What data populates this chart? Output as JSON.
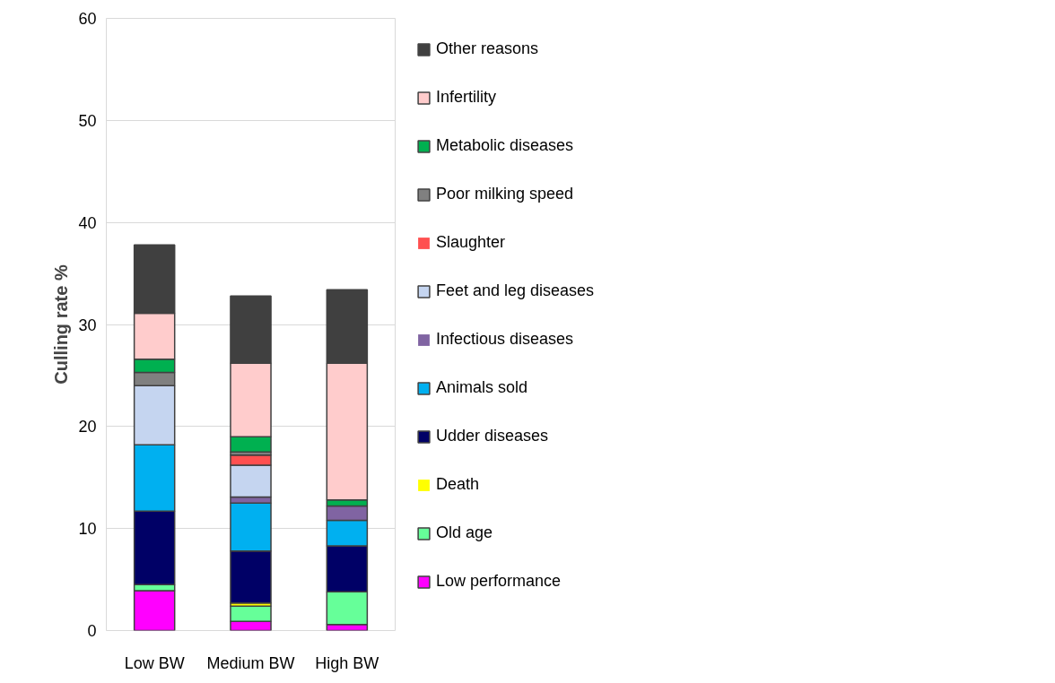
{
  "chart_data": {
    "type": "bar",
    "stacked": true,
    "ylabel": "Culling rate %",
    "categories": [
      "Low BW",
      "Medium BW",
      "High BW"
    ],
    "series": [
      {
        "name": "Low performance",
        "color": "#ff00ff",
        "values": [
          3.9,
          0.9,
          0.6
        ]
      },
      {
        "name": "Old age",
        "color": "#66ff99",
        "values": [
          0.6,
          1.5,
          3.2
        ]
      },
      {
        "name": "Death",
        "color": "#ffff00",
        "values": [
          0,
          0.3,
          0
        ]
      },
      {
        "name": "Udder diseases",
        "color": "#000066",
        "values": [
          7.2,
          5.1,
          4.5
        ]
      },
      {
        "name": "Animals sold",
        "color": "#00b0f0",
        "values": [
          6.5,
          4.7,
          2.5
        ]
      },
      {
        "name": "Infectious diseases",
        "color": "#8064a2",
        "values": [
          0,
          0.6,
          1.4
        ]
      },
      {
        "name": "Feet and leg diseases",
        "color": "#c5d5f0",
        "values": [
          5.8,
          3.1,
          0
        ]
      },
      {
        "name": "Slaughter",
        "color": "#ff5050",
        "values": [
          0,
          1.0,
          0
        ]
      },
      {
        "name": "Poor milking speed",
        "color": "#808080",
        "values": [
          1.3,
          0.3,
          0
        ]
      },
      {
        "name": "Metabolic diseases",
        "color": "#00b050",
        "values": [
          1.3,
          1.5,
          0.6
        ]
      },
      {
        "name": "Infertility",
        "color": "#ffcccc",
        "values": [
          4.5,
          7.2,
          13.4
        ]
      },
      {
        "name": "Other reasons",
        "color": "#404040",
        "values": [
          6.7,
          6.6,
          7.2
        ]
      }
    ],
    "ylim": [
      0,
      60
    ],
    "yticks": [
      0,
      10,
      20,
      30,
      40,
      50,
      60
    ],
    "grid": "y",
    "legend": "right"
  }
}
